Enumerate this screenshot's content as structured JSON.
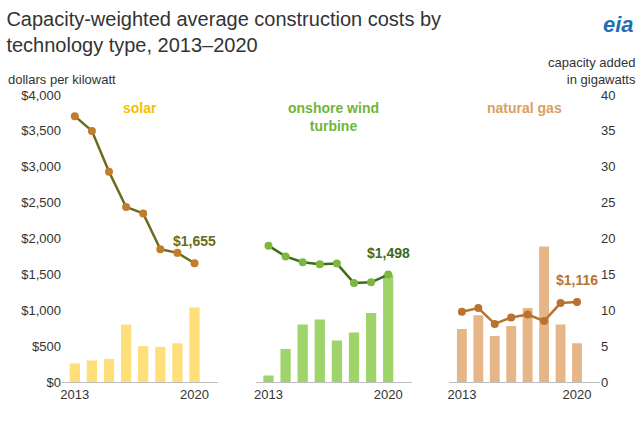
{
  "chart_data": {
    "type": "bar",
    "title": "Capacity-weighted average construction costs by\ntechnology type, 2013–2020",
    "ylabel": "dollars per kilowatt",
    "y2label": "capacity added\nin gigawatts",
    "ylim": [
      0,
      4000
    ],
    "yticks": [
      {
        "value": 0,
        "label": "$0"
      },
      {
        "value": 500,
        "label": "$500"
      },
      {
        "value": 1000,
        "label": "$1,000"
      },
      {
        "value": 1500,
        "label": "$1,500"
      },
      {
        "value": 2000,
        "label": "$2,000"
      },
      {
        "value": 2500,
        "label": "$2,500"
      },
      {
        "value": 3000,
        "label": "$3,000"
      },
      {
        "value": 3500,
        "label": "$3,500"
      },
      {
        "value": 4000,
        "label": "$4,000"
      }
    ],
    "y2lim": [
      0,
      40
    ],
    "y2ticks": [
      0,
      5,
      10,
      15,
      20,
      25,
      30,
      35,
      40
    ],
    "grid": false,
    "annotations": [
      {
        "text": "eia"
      }
    ],
    "panels": [
      {
        "title": "solar",
        "categories": [
          "2013",
          null,
          null,
          null,
          null,
          null,
          null,
          "2020"
        ],
        "series": [
          {
            "type": "bar",
            "axis": "y2",
            "color": "#ffdf7a",
            "values": [
              2.6,
              3.0,
              3.2,
              8.0,
              5.0,
              4.9,
              5.4,
              10.4
            ]
          },
          {
            "type": "line",
            "color": "#6b6b1a",
            "marker": "circle",
            "values": [
              3705,
              3500,
              2930,
              2440,
              2350,
              1850,
              1800,
              1655
            ],
            "value_labels": [
              null,
              null,
              null,
              null,
              null,
              null,
              null,
              "$1,655"
            ]
          }
        ]
      },
      {
        "title": "onshore wind\nturbine",
        "categories": [
          "2013",
          null,
          null,
          null,
          null,
          null,
          null,
          "2020"
        ],
        "series": [
          {
            "type": "bar",
            "axis": "y2",
            "color": "#9fd46b",
            "values": [
              0.9,
              4.6,
              8.0,
              8.7,
              5.8,
              6.9,
              9.6,
              15.0
            ]
          },
          {
            "type": "line",
            "color": "#3d6b1c",
            "marker": "circle",
            "values": [
              1900,
              1750,
              1670,
              1640,
              1650,
              1380,
              1390,
              1498
            ],
            "value_labels": [
              null,
              null,
              null,
              null,
              null,
              null,
              null,
              "$1,498"
            ]
          }
        ]
      },
      {
        "title": "natural gas",
        "categories": [
          "2013",
          null,
          null,
          null,
          null,
          null,
          null,
          "2020"
        ],
        "series": [
          {
            "type": "bar",
            "axis": "y2",
            "color": "#e6b689",
            "values": [
              7.4,
              9.3,
              6.4,
              7.8,
              10.3,
              18.9,
              8.0,
              5.4
            ]
          },
          {
            "type": "line",
            "color": "#b8732f",
            "marker": "circle",
            "values": [
              980,
              1030,
              810,
              900,
              940,
              850,
              1100,
              1116
            ],
            "value_labels": [
              null,
              null,
              null,
              null,
              null,
              null,
              null,
              "$1,116"
            ]
          }
        ]
      }
    ]
  }
}
